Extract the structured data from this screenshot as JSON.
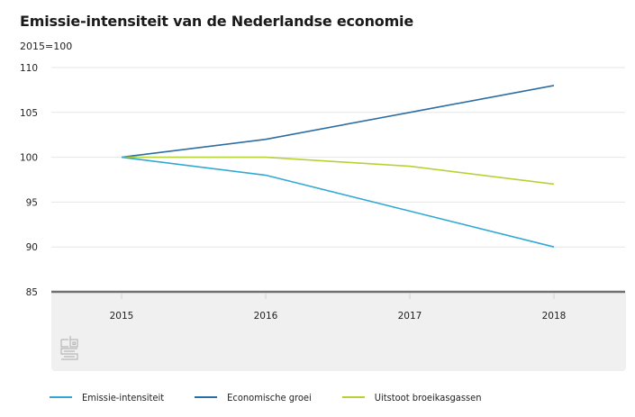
{
  "chart_data": {
    "type": "line",
    "title": "Emissie-intensiteit van de Nederlandse economie",
    "subtitle": "2015=100",
    "xlabel": "",
    "ylabel": "2015=100",
    "x": [
      "2015",
      "2016",
      "2017",
      "2018"
    ],
    "ylim": [
      85,
      110
    ],
    "yticks": [
      "85",
      "90",
      "95",
      "100",
      "105",
      "110"
    ],
    "grid": true,
    "legend_position": "bottom-left",
    "series": [
      {
        "name": "Emissie-intensiteit",
        "color": "#32a9d4",
        "values": [
          100,
          98,
          94,
          90
        ]
      },
      {
        "name": "Economische groei",
        "color": "#2c6ea3",
        "values": [
          100,
          102,
          105,
          108
        ]
      },
      {
        "name": "Uitstoot broeikasgassen",
        "color": "#b5d334",
        "values": [
          100,
          100,
          99,
          97
        ]
      }
    ]
  },
  "colors": {
    "gridline": "#e6e6e6",
    "baseline": "#707070",
    "axis_band": "#f0f0f0",
    "logo": "#b8b8b8"
  },
  "logo": {
    "icon": "cbs-logo-icon",
    "alt": "cbs"
  }
}
